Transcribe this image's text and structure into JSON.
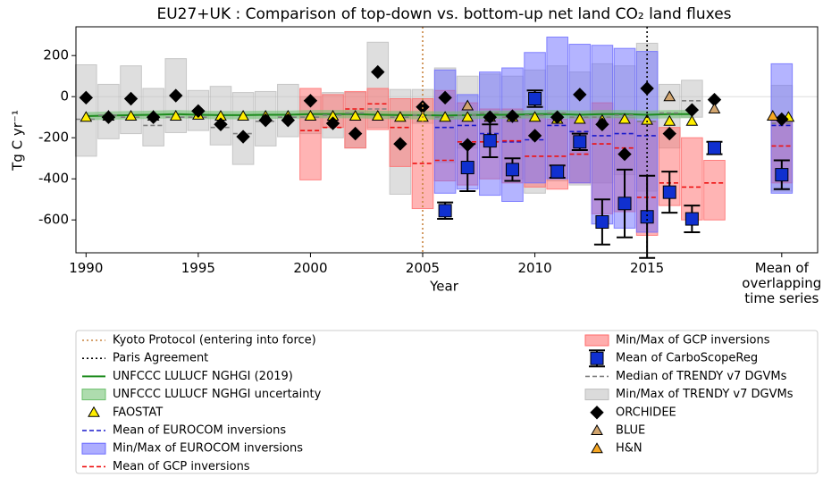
{
  "chart_data": {
    "type": "composite",
    "title": "EU27+UK : Comparison of top-down vs. bottom-up net land CO₂ land fluxes",
    "x_label": "Year",
    "y_label": "Tg C yr⁻¹",
    "xlim": [
      1989.55,
      2022.6
    ],
    "ylim": [
      -760,
      340
    ],
    "xticks": [
      1990,
      1995,
      2000,
      2005,
      2010,
      2015,
      {
        "value": 2021,
        "label": "Mean of\noverlapping\ntime series"
      }
    ],
    "yticks": [
      -600,
      -400,
      -200,
      0,
      200
    ],
    "zero_line": true,
    "series": [
      {
        "name": "Kyoto Protocol (entering into force)",
        "kind": "vline",
        "color": "#c8843f",
        "x": 2005
      },
      {
        "name": "Paris Agreement",
        "kind": "vline",
        "color": "#000000",
        "x": 2015
      },
      {
        "name": "UNFCCC LULUCF NGHGI (2019)",
        "kind": "line",
        "color": "#1e8c1e",
        "x": [
          1990,
          1991,
          1992,
          1993,
          1994,
          1995,
          1996,
          1997,
          1998,
          1999,
          2000,
          2001,
          2002,
          2003,
          2004,
          2005,
          2006,
          2007,
          2008,
          2009,
          2010,
          2011,
          2012,
          2013,
          2014,
          2015,
          2016,
          2017
        ],
        "values": [
          -95,
          -92,
          -90,
          -88,
          -85,
          -88,
          -90,
          -90,
          -88,
          -88,
          -85,
          -85,
          -85,
          -88,
          -90,
          -90,
          -92,
          -90,
          -88,
          -88,
          -85,
          -85,
          -88,
          -85,
          -85,
          -88,
          -85,
          -85
        ]
      },
      {
        "name": "UNFCCC LULUCF NGHGI uncertainty",
        "kind": "band",
        "color": "#6cbf6c",
        "x": [
          1990,
          1991,
          1992,
          1993,
          1994,
          1995,
          1996,
          1997,
          1998,
          1999,
          2000,
          2001,
          2002,
          2003,
          2004,
          2005,
          2006,
          2007,
          2008,
          2009,
          2010,
          2011,
          2012,
          2013,
          2014,
          2015,
          2016,
          2017
        ],
        "lower": [
          -115,
          -112,
          -110,
          -108,
          -105,
          -108,
          -110,
          -110,
          -108,
          -108,
          -105,
          -105,
          -105,
          -108,
          -110,
          -110,
          -112,
          -110,
          -108,
          -108,
          -105,
          -105,
          -108,
          -105,
          -105,
          -108,
          -105,
          -105
        ],
        "upper": [
          -75,
          -72,
          -70,
          -68,
          -65,
          -68,
          -70,
          -70,
          -68,
          -68,
          -65,
          -65,
          -65,
          -68,
          -70,
          -70,
          -72,
          -70,
          -68,
          -68,
          -65,
          -65,
          -68,
          -65,
          -65,
          -68,
          -65,
          -65
        ]
      },
      {
        "name": "FAOSTAT",
        "kind": "marker",
        "marker": "triangle",
        "color": "#ffee00",
        "x": [
          1990,
          1991,
          1992,
          1993,
          1994,
          1995,
          1996,
          1997,
          1998,
          1999,
          2000,
          2001,
          2002,
          2003,
          2004,
          2005,
          2006,
          2007,
          2008,
          2009,
          2010,
          2011,
          2012,
          2013,
          2014,
          2015,
          2016,
          2017,
          2021.3
        ],
        "values": [
          -100,
          -95,
          -95,
          -95,
          -95,
          -90,
          -95,
          -95,
          -95,
          -95,
          -95,
          -95,
          -95,
          -95,
          -100,
          -100,
          -100,
          -100,
          -100,
          -100,
          -100,
          -110,
          -110,
          -115,
          -110,
          -115,
          -120,
          -120,
          -100
        ]
      },
      {
        "name": "Mean of EUROCOM inversions",
        "kind": "dash",
        "color": "#1a1acc",
        "x": [
          2006,
          2007,
          2008,
          2009,
          2010,
          2011,
          2012,
          2013,
          2014,
          2015,
          2021
        ],
        "values": [
          -150,
          -140,
          -180,
          -220,
          -210,
          -140,
          -170,
          -190,
          -180,
          -190,
          -140
        ]
      },
      {
        "name": "Min/Max of EUROCOM inversions",
        "kind": "box",
        "color": "#6a6aff",
        "x": [
          2006,
          2007,
          2008,
          2009,
          2010,
          2011,
          2012,
          2013,
          2014,
          2015,
          2021
        ],
        "lower": [
          -470,
          -450,
          -480,
          -510,
          -420,
          -400,
          -420,
          -620,
          -640,
          -660,
          -470
        ],
        "upper": [
          130,
          10,
          120,
          140,
          215,
          290,
          255,
          250,
          235,
          220,
          160
        ]
      },
      {
        "name": "Mean of GCP inversions",
        "kind": "dash",
        "color": "#ee1111",
        "x": [
          2000,
          2001,
          2002,
          2003,
          2004,
          2005,
          2006,
          2007,
          2008,
          2009,
          2010,
          2011,
          2012,
          2013,
          2014,
          2015,
          2016,
          2017,
          2018,
          2021
        ],
        "values": [
          -165,
          -150,
          -60,
          -35,
          -150,
          -325,
          -310,
          -220,
          -220,
          -215,
          -290,
          -290,
          -280,
          -230,
          -250,
          -490,
          -420,
          -440,
          -420,
          -240
        ]
      },
      {
        "name": "Min/Max of GCP inversions",
        "kind": "box",
        "color": "#ff6a6a",
        "x": [
          2000,
          2001,
          2002,
          2003,
          2004,
          2005,
          2006,
          2007,
          2008,
          2009,
          2010,
          2011,
          2012,
          2013,
          2014,
          2015,
          2016,
          2017,
          2018,
          2021
        ],
        "lower": [
          -405,
          -150,
          -250,
          -160,
          -340,
          -545,
          -410,
          -430,
          -400,
          -420,
          -440,
          -450,
          -420,
          -570,
          -560,
          -675,
          -530,
          -600,
          -600,
          -420
        ],
        "upper": [
          40,
          10,
          25,
          40,
          -10,
          -10,
          30,
          -30,
          -60,
          -60,
          -90,
          -110,
          -100,
          -30,
          -100,
          -120,
          -150,
          -200,
          -310,
          -100
        ]
      },
      {
        "name": "Mean of CarboScopeReg",
        "kind": "errorbar",
        "color": "#1030d0",
        "x": [
          2006,
          2007,
          2008,
          2009,
          2010,
          2011,
          2012,
          2013,
          2014,
          2015,
          2016,
          2017,
          2018,
          2021
        ],
        "values": [
          -555,
          -345,
          -215,
          -355,
          -10,
          -365,
          -220,
          -610,
          -520,
          -585,
          -465,
          -595,
          -250,
          -380
        ],
        "errors": [
          40,
          115,
          80,
          55,
          40,
          30,
          40,
          110,
          165,
          200,
          100,
          65,
          30,
          70
        ]
      },
      {
        "name": "Median of TRENDY v7 DGVMs",
        "kind": "dash",
        "color": "#808080",
        "x": [
          1990,
          1991,
          1992,
          1993,
          1994,
          1995,
          1996,
          1997,
          1998,
          1999,
          2000,
          2001,
          2002,
          2003,
          2004,
          2005,
          2006,
          2007,
          2008,
          2009,
          2010,
          2011,
          2012,
          2013,
          2014,
          2015,
          2016,
          2017,
          2021
        ],
        "values": [
          -110,
          -90,
          -100,
          -140,
          -100,
          -100,
          -150,
          -180,
          -120,
          -100,
          -100,
          -90,
          -80,
          -60,
          -100,
          -90,
          -100,
          -90,
          -80,
          -100,
          -90,
          -80,
          -100,
          -100,
          -90,
          -120,
          -80,
          -20,
          -130
        ]
      },
      {
        "name": "Min/Max of TRENDY v7 DGVMs",
        "kind": "box",
        "color": "#bdbdbd",
        "x": [
          1990,
          1991,
          1992,
          1993,
          1994,
          1995,
          1996,
          1997,
          1998,
          1999,
          2000,
          2001,
          2002,
          2003,
          2004,
          2005,
          2006,
          2007,
          2008,
          2009,
          2010,
          2011,
          2012,
          2013,
          2014,
          2015,
          2016,
          2017,
          2021
        ],
        "lower": [
          -290,
          -205,
          -180,
          -240,
          -175,
          -165,
          -235,
          -330,
          -240,
          -195,
          -180,
          -200,
          -250,
          -150,
          -475,
          -130,
          -320,
          -250,
          -220,
          -400,
          -470,
          -410,
          -430,
          -420,
          -380,
          -460,
          -250,
          -100,
          -460
        ],
        "upper": [
          155,
          60,
          150,
          40,
          185,
          30,
          50,
          20,
          25,
          60,
          0,
          20,
          20,
          265,
          35,
          35,
          140,
          100,
          110,
          100,
          130,
          150,
          120,
          160,
          150,
          260,
          60,
          80,
          55
        ]
      },
      {
        "name": "ORCHIDEE",
        "kind": "marker",
        "marker": "diamond",
        "color": "#000000",
        "x": [
          1990,
          1991,
          1992,
          1993,
          1994,
          1995,
          1996,
          1997,
          1998,
          1999,
          2000,
          2001,
          2002,
          2003,
          2004,
          2005,
          2006,
          2007,
          2008,
          2009,
          2010,
          2011,
          2012,
          2013,
          2014,
          2015,
          2016,
          2017,
          2018,
          2021
        ],
        "values": [
          -5,
          -100,
          -10,
          -100,
          5,
          -70,
          -135,
          -195,
          -115,
          -115,
          -20,
          -130,
          -180,
          120,
          -230,
          -50,
          -5,
          -235,
          -100,
          -95,
          -190,
          -100,
          10,
          -135,
          -280,
          40,
          -180,
          -65,
          -15,
          -110
        ]
      },
      {
        "name": "BLUE",
        "kind": "marker",
        "marker": "triangle",
        "color": "#d2a56e",
        "x": [
          2007,
          2016,
          2018
        ],
        "values": [
          -45,
          0,
          -60
        ]
      },
      {
        "name": "H&N",
        "kind": "marker",
        "marker": "triangle",
        "color": "#f5a623",
        "x": [
          2020.6
        ],
        "values": [
          -95
        ]
      }
    ]
  }
}
